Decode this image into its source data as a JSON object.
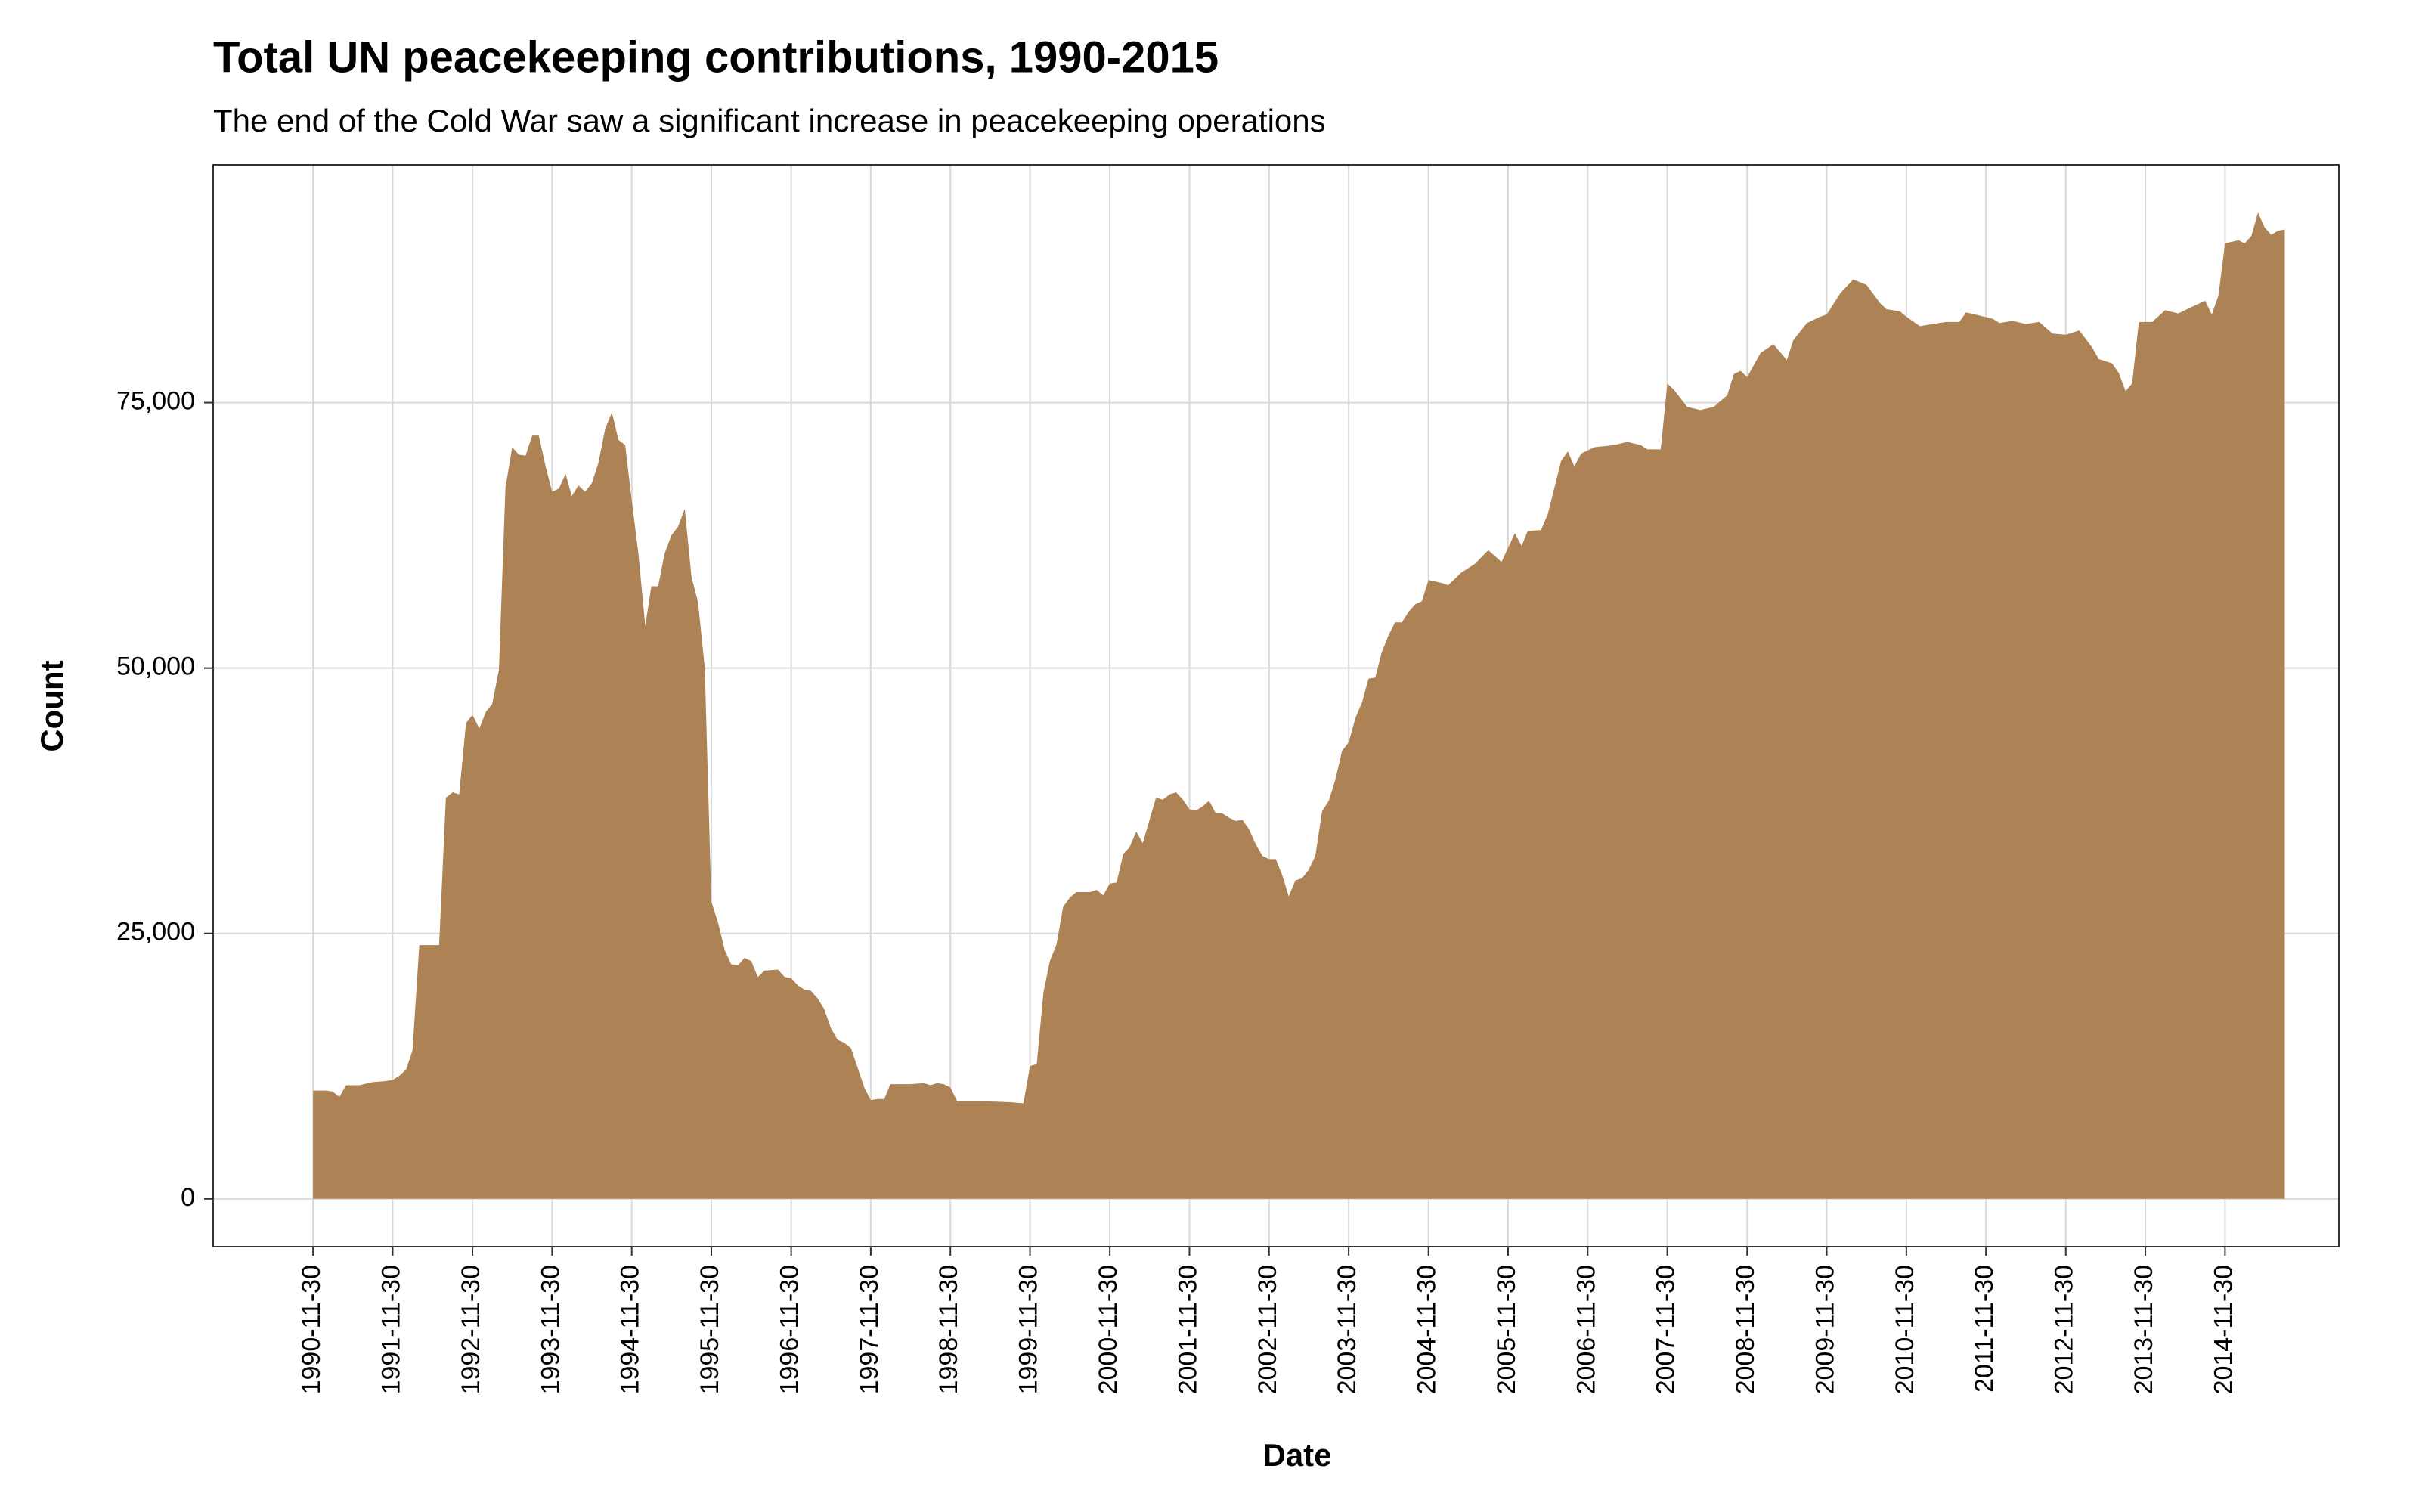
{
  "chart_data": {
    "type": "area",
    "title": "Total UN peacekeeping contributions, 1990-2015",
    "subtitle": "The end of the Cold War saw a significant increase in peacekeeping operations",
    "x_label": "Date",
    "y_label": "Count",
    "color": "#ad8254",
    "grid": true,
    "xlim": [
      "1989-08-29",
      "2016-05-05"
    ],
    "ylim": [
      -4500,
      97400
    ],
    "xticks": [
      "1990-11-30",
      "1991-11-30",
      "1992-11-30",
      "1993-11-30",
      "1994-11-30",
      "1995-11-30",
      "1996-11-30",
      "1997-11-30",
      "1998-11-30",
      "1999-11-30",
      "2000-11-30",
      "2001-11-30",
      "2002-11-30",
      "2003-11-30",
      "2004-11-30",
      "2005-11-30",
      "2006-11-30",
      "2007-11-30",
      "2008-11-30",
      "2009-11-30",
      "2010-11-30",
      "2011-11-30",
      "2012-11-30",
      "2013-11-30",
      "2014-11-30"
    ],
    "yticks": [
      0,
      {
        "value": 25000,
        "label": "25,000"
      },
      {
        "value": 50000,
        "label": "50,000"
      },
      {
        "value": 75000,
        "label": "75,000"
      }
    ],
    "x": [
      "1990-11-30",
      "1991-01-31",
      "1991-02-28",
      "1991-03-31",
      "1991-04-30",
      "1991-06-30",
      "1991-08-31",
      "1991-10-31",
      "1991-11-30",
      "1991-12-31",
      "1992-01-31",
      "1992-02-29",
      "1992-03-31",
      "1992-06-30",
      "1992-07-31",
      "1992-08-31",
      "1992-09-30",
      "1992-10-31",
      "1992-11-30",
      "1992-12-31",
      "1993-01-31",
      "1993-02-28",
      "1993-03-31",
      "1993-04-30",
      "1993-05-31",
      "1993-06-30",
      "1993-07-31",
      "1993-08-31",
      "1993-09-30",
      "1993-10-31",
      "1993-11-30",
      "1993-12-31",
      "1994-01-31",
      "1994-02-28",
      "1994-03-31",
      "1994-04-30",
      "1994-05-31",
      "1994-06-30",
      "1994-07-31",
      "1994-08-31",
      "1994-09-30",
      "1994-10-31",
      "1994-11-30",
      "1994-12-31",
      "1995-01-31",
      "1995-02-28",
      "1995-03-31",
      "1995-04-30",
      "1995-05-31",
      "1995-06-30",
      "1995-07-31",
      "1995-08-31",
      "1995-09-30",
      "1995-10-31",
      "1995-11-30",
      "1995-12-31",
      "1996-01-31",
      "1996-02-29",
      "1996-03-31",
      "1996-04-30",
      "1996-05-31",
      "1996-06-30",
      "1996-07-31",
      "1996-09-30",
      "1996-10-31",
      "1996-11-30",
      "1996-12-31",
      "1997-01-31",
      "1997-02-28",
      "1997-03-31",
      "1997-04-30",
      "1997-05-31",
      "1997-06-30",
      "1997-07-31",
      "1997-08-31",
      "1997-09-30",
      "1997-10-31",
      "1997-11-30",
      "1997-12-31",
      "1998-01-31",
      "1998-02-28",
      "1998-05-31",
      "1998-07-31",
      "1998-08-31",
      "1998-09-30",
      "1998-10-31",
      "1998-11-30",
      "1998-12-31",
      "1999-04-30",
      "1999-08-31",
      "1999-10-31",
      "1999-11-30",
      "1999-12-31",
      "2000-01-31",
      "2000-02-29",
      "2000-03-31",
      "2000-04-30",
      "2000-05-31",
      "2000-06-30",
      "2000-08-31",
      "2000-09-30",
      "2000-10-31",
      "2000-11-30",
      "2000-12-31",
      "2001-01-31",
      "2001-02-28",
      "2001-03-31",
      "2001-04-30",
      "2001-05-31",
      "2001-06-30",
      "2001-07-31",
      "2001-08-31",
      "2001-09-30",
      "2001-10-31",
      "2001-11-30",
      "2001-12-31",
      "2002-01-31",
      "2002-02-28",
      "2002-03-31",
      "2002-04-30",
      "2002-05-31",
      "2002-06-30",
      "2002-07-31",
      "2002-08-31",
      "2002-09-30",
      "2002-10-31",
      "2002-11-30",
      "2002-12-31",
      "2003-01-31",
      "2003-02-28",
      "2003-03-31",
      "2003-04-30",
      "2003-05-31",
      "2003-06-30",
      "2003-07-31",
      "2003-08-31",
      "2003-09-30",
      "2003-10-31",
      "2003-11-30",
      "2003-12-31",
      "2004-01-31",
      "2004-02-29",
      "2004-03-31",
      "2004-04-30",
      "2004-05-31",
      "2004-06-30",
      "2004-07-31",
      "2004-08-31",
      "2004-09-30",
      "2004-10-31",
      "2004-11-30",
      "2005-01-31",
      "2005-02-28",
      "2005-04-30",
      "2005-06-30",
      "2005-08-31",
      "2005-10-31",
      "2005-12-31",
      "2006-01-31",
      "2006-02-28",
      "2006-04-30",
      "2006-05-31",
      "2006-07-31",
      "2006-08-31",
      "2006-09-30",
      "2006-10-31",
      "2006-12-31",
      "2007-03-31",
      "2007-05-31",
      "2007-07-31",
      "2007-08-31",
      "2007-10-31",
      "2007-11-30",
      "2007-12-31",
      "2008-02-29",
      "2008-04-30",
      "2008-06-30",
      "2008-08-31",
      "2008-09-30",
      "2008-10-31",
      "2008-11-30",
      "2009-01-31",
      "2009-03-31",
      "2009-05-31",
      "2009-06-30",
      "2009-08-31",
      "2009-10-31",
      "2009-11-30",
      "2010-01-31",
      "2010-03-31",
      "2010-05-31",
      "2010-07-31",
      "2010-08-31",
      "2010-10-31",
      "2010-11-30",
      "2011-01-31",
      "2011-03-31",
      "2011-05-31",
      "2011-07-31",
      "2011-08-31",
      "2011-10-31",
      "2011-12-31",
      "2012-01-31",
      "2012-03-31",
      "2012-05-31",
      "2012-07-31",
      "2012-09-30",
      "2012-11-30",
      "2013-01-31",
      "2013-03-31",
      "2013-04-30",
      "2013-06-30",
      "2013-07-31",
      "2013-08-31",
      "2013-09-30",
      "2013-10-31",
      "2013-12-31",
      "2014-02-28",
      "2014-04-30",
      "2014-06-30",
      "2014-08-31",
      "2014-09-30",
      "2014-10-31",
      "2014-11-30",
      "2015-01-31",
      "2015-02-28",
      "2015-03-31",
      "2015-04-30",
      "2015-05-31",
      "2015-06-30",
      "2015-07-31",
      "2015-08-31"
    ],
    "values": [
      10200,
      10200,
      10100,
      9600,
      10700,
      10700,
      11000,
      11100,
      11200,
      11600,
      12200,
      14000,
      23900,
      23900,
      37800,
      38300,
      38100,
      44800,
      45600,
      44300,
      45900,
      46600,
      49800,
      67000,
      70800,
      70100,
      70000,
      71900,
      71900,
      69000,
      66600,
      66900,
      68300,
      66200,
      67200,
      66600,
      67400,
      69300,
      72500,
      74100,
      71500,
      71000,
      65800,
      60700,
      54000,
      57700,
      57700,
      60800,
      62500,
      63300,
      65000,
      58600,
      56200,
      50000,
      28000,
      26000,
      23400,
      22100,
      22000,
      22700,
      22400,
      20900,
      21500,
      21600,
      20900,
      20800,
      20100,
      19700,
      19600,
      18900,
      17900,
      16100,
      15000,
      14700,
      14200,
      12400,
      10500,
      9300,
      9400,
      9400,
      10800,
      10800,
      10900,
      10700,
      10900,
      10800,
      10500,
      9200,
      9200,
      9100,
      9000,
      12500,
      12700,
      19500,
      22400,
      24000,
      27500,
      28400,
      28900,
      28900,
      29100,
      28600,
      29700,
      29800,
      32500,
      33100,
      34600,
      33500,
      35700,
      37800,
      37600,
      38100,
      38300,
      37600,
      36700,
      36600,
      37000,
      37500,
      36300,
      36300,
      35900,
      35600,
      35700,
      34800,
      33400,
      32300,
      32000,
      32000,
      30400,
      28500,
      30000,
      30200,
      31000,
      32300,
      36500,
      37500,
      39500,
      42200,
      43000,
      45300,
      46800,
      49000,
      49100,
      51500,
      53100,
      54300,
      54300,
      55300,
      56000,
      56300,
      58300,
      58000,
      57800,
      59000,
      59800,
      61100,
      60000,
      62700,
      61500,
      62900,
      63000,
      64500,
      69500,
      70400,
      69000,
      70200,
      70800,
      71000,
      71300,
      71000,
      70600,
      70600,
      76800,
      76200,
      74600,
      74300,
      74600,
      75700,
      77700,
      78000,
      77400,
      79700,
      80500,
      79000,
      80900,
      82500,
      83100,
      83300,
      85300,
      86600,
      86100,
      84400,
      83800,
      83600,
      83100,
      82200,
      82400,
      82600,
      82600,
      83500,
      83200,
      82900,
      82500,
      82700,
      82400,
      82600,
      81500,
      81400,
      81800,
      80200,
      79100,
      78700,
      77800,
      76100,
      76800,
      82600,
      82600,
      83700,
      83400,
      84000,
      84600,
      83300,
      85100,
      90000,
      90300,
      90000,
      90700,
      92900,
      91500,
      90800,
      91200,
      91300
    ]
  }
}
